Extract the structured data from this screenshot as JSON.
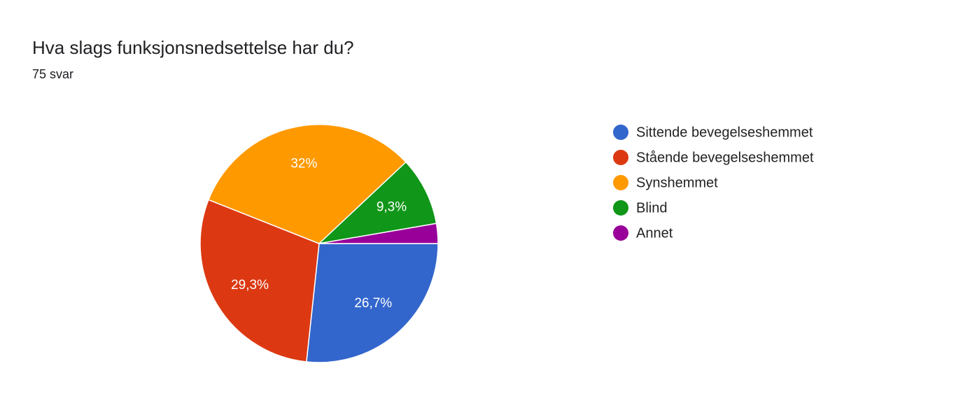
{
  "chart_data": {
    "type": "pie",
    "title": "Hva slags funksjonsnedsettelse har du?",
    "subtitle": "75 svar",
    "categories": [
      "Sittende bevegelseshemmet",
      "Stående bevegelseshemmet",
      "Synshemmet",
      "Blind",
      "Annet"
    ],
    "values": [
      26.7,
      29.3,
      32,
      9.3,
      2.7
    ],
    "value_labels": [
      "26,7%",
      "29,3%",
      "32%",
      "9,3%",
      null
    ],
    "colors": [
      "#3366cc",
      "#dc3912",
      "#ff9900",
      "#109618",
      "#990099"
    ],
    "legend": "right"
  }
}
